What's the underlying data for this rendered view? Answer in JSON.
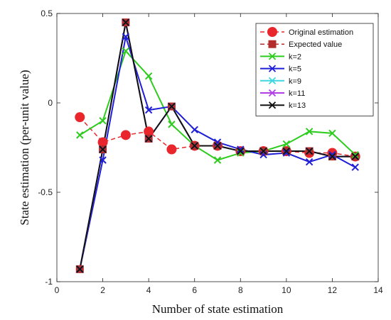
{
  "chart_data": {
    "type": "line",
    "title": "",
    "xlabel": "Number of state estimation",
    "ylabel": "State estimation (per-unit value)",
    "xlim": [
      0,
      14
    ],
    "ylim": [
      -1,
      0.5
    ],
    "xticks": [
      0,
      2,
      4,
      6,
      8,
      10,
      12,
      14
    ],
    "xtick_labels": [
      "0",
      "2",
      "4",
      "6",
      "8",
      "10",
      "12",
      "14"
    ],
    "yticks": [
      -1,
      -0.5,
      0,
      0.5
    ],
    "ytick_labels": [
      "-1",
      "-0.5",
      "0",
      "0.5"
    ],
    "grid": false,
    "legend_position": "top-right",
    "x": [
      1,
      2,
      3,
      4,
      5,
      6,
      7,
      8,
      9,
      10,
      11,
      12,
      13
    ],
    "series": [
      {
        "name": "Original estimation",
        "color": "#e8262b",
        "marker": "circle",
        "line": "dash",
        "values": [
          -0.08,
          -0.22,
          -0.18,
          -0.16,
          -0.26,
          -0.24,
          -0.24,
          -0.27,
          -0.27,
          -0.27,
          -0.28,
          -0.28,
          -0.3
        ]
      },
      {
        "name": "Expected value",
        "color": "#b42d2d",
        "marker": "square",
        "line": "dash",
        "values": [
          -0.93,
          -0.26,
          0.45,
          -0.2,
          -0.02,
          -0.24,
          -0.24,
          -0.27,
          -0.27,
          -0.27,
          -0.27,
          -0.3,
          -0.3
        ]
      },
      {
        "name": "k=2",
        "color": "#2ecc1f",
        "marker": "x",
        "line": "solid",
        "values": [
          -0.18,
          -0.1,
          0.29,
          0.15,
          -0.12,
          -0.24,
          -0.32,
          -0.28,
          -0.27,
          -0.23,
          -0.16,
          -0.17,
          -0.29
        ]
      },
      {
        "name": "k=5",
        "color": "#1f1fd8",
        "marker": "x",
        "line": "solid",
        "values": [
          -0.93,
          -0.32,
          0.37,
          -0.04,
          -0.02,
          -0.15,
          -0.22,
          -0.26,
          -0.29,
          -0.28,
          -0.33,
          -0.29,
          -0.36
        ]
      },
      {
        "name": "k=9",
        "color": "#3fd6e0",
        "marker": "x",
        "line": "solid",
        "values": [
          -0.93,
          -0.26,
          0.45,
          -0.2,
          -0.02,
          -0.24,
          -0.24,
          -0.27,
          -0.27,
          -0.27,
          -0.27,
          -0.3,
          -0.3
        ]
      },
      {
        "name": "k=11",
        "color": "#b23ee6",
        "marker": "x",
        "line": "solid",
        "values": [
          -0.93,
          -0.26,
          0.45,
          -0.2,
          -0.02,
          -0.24,
          -0.24,
          -0.27,
          -0.27,
          -0.27,
          -0.27,
          -0.3,
          -0.3
        ]
      },
      {
        "name": "k=13",
        "color": "#111111",
        "marker": "x",
        "line": "solid",
        "values": [
          -0.93,
          -0.26,
          0.45,
          -0.2,
          -0.02,
          -0.24,
          -0.24,
          -0.27,
          -0.27,
          -0.27,
          -0.27,
          -0.3,
          -0.3
        ]
      }
    ]
  }
}
